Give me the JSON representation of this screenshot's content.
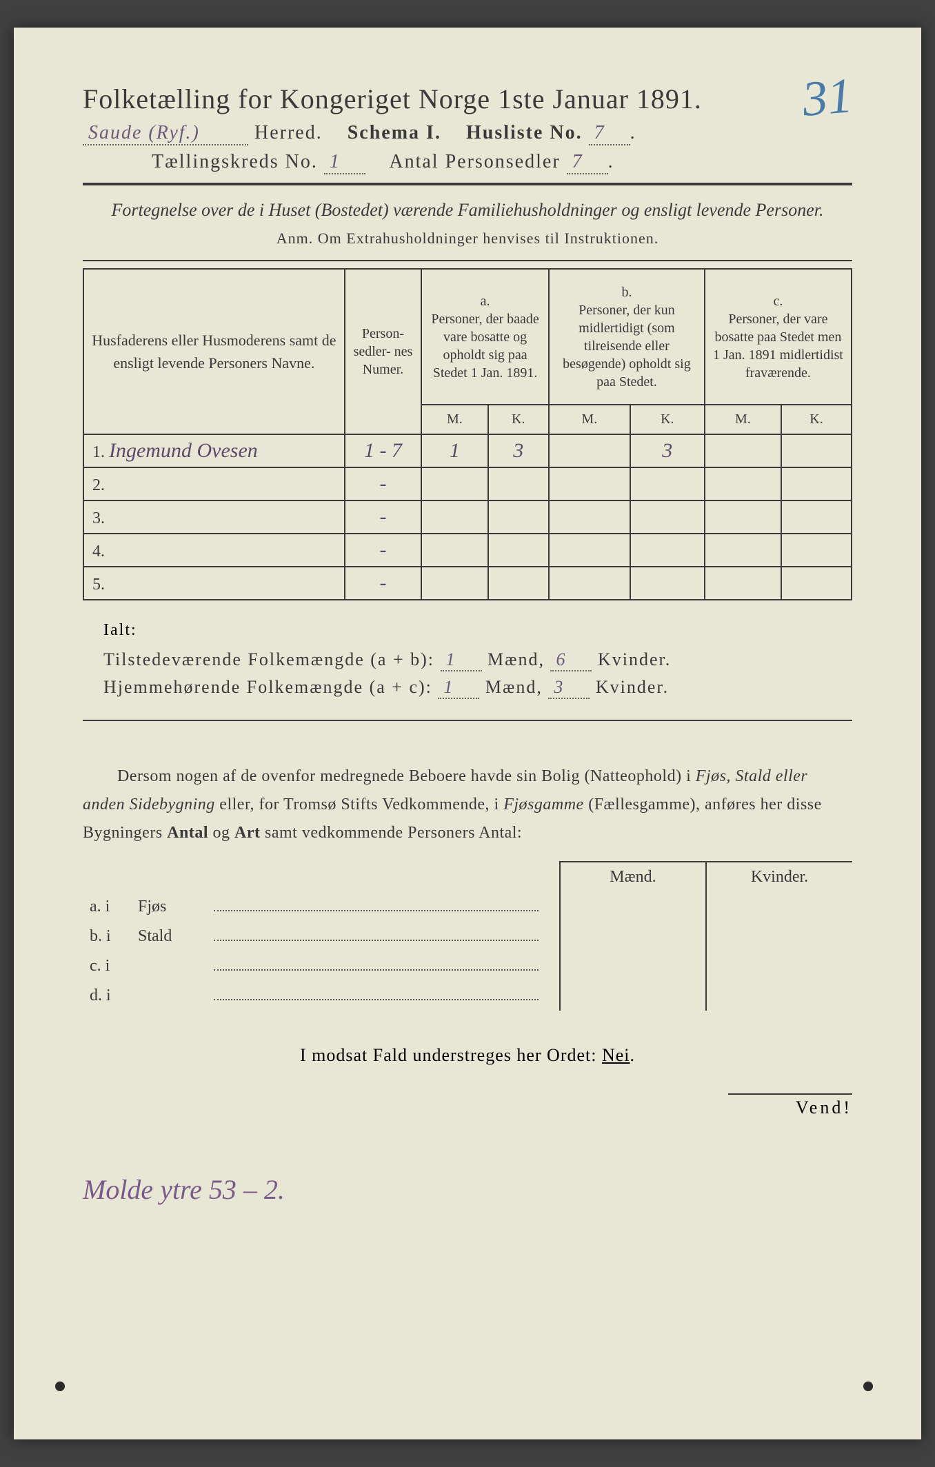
{
  "handwritten_page_number": "31",
  "header": {
    "title": "Folketælling for Kongeriget Norge 1ste Januar 1891.",
    "herred_label_prefix": "Herred.",
    "herred_value": "Saude (Ryf.)",
    "schema_label": "Schema I.",
    "husliste_label": "Husliste No.",
    "husliste_value": "7",
    "tkreds_label": "Tællingskreds No.",
    "tkreds_value": "1",
    "antal_label": "Antal Personsedler",
    "antal_value": "7"
  },
  "description": "Fortegnelse over de i Huset (Bostedet) værende Familiehusholdninger og ensligt levende Personer.",
  "anm_line": "Anm.  Om Extrahusholdninger henvises til Instruktionen.",
  "table": {
    "col_name_header": "Husfaderens eller Husmoderens samt de ensligt levende Personers Navne.",
    "col_personsedler": "Person-\nsedler-\nnes\nNumer.",
    "col_a_label": "a.",
    "col_a_text": "Personer, der baade vare bosatte og opholdt sig paa Stedet 1 Jan. 1891.",
    "col_b_label": "b.",
    "col_b_text": "Personer, der kun midlertidigt (som tilreisende eller besøgende) opholdt sig paa Stedet.",
    "col_c_label": "c.",
    "col_c_text": "Personer, der vare bosatte paa Stedet men 1 Jan. 1891 midlertidist fraværende.",
    "mk_m": "M.",
    "mk_k": "K.",
    "rows": [
      {
        "n": "1.",
        "name": "Ingemund Ovesen",
        "ps": "1 - 7",
        "a_m": "1",
        "a_k": "3",
        "b_m": "",
        "b_k": "3",
        "c_m": "",
        "c_k": ""
      },
      {
        "n": "2.",
        "name": "",
        "ps": "-",
        "a_m": "",
        "a_k": "",
        "b_m": "",
        "b_k": "",
        "c_m": "",
        "c_k": ""
      },
      {
        "n": "3.",
        "name": "",
        "ps": "-",
        "a_m": "",
        "a_k": "",
        "b_m": "",
        "b_k": "",
        "c_m": "",
        "c_k": ""
      },
      {
        "n": "4.",
        "name": "",
        "ps": "-",
        "a_m": "",
        "a_k": "",
        "b_m": "",
        "b_k": "",
        "c_m": "",
        "c_k": ""
      },
      {
        "n": "5.",
        "name": "",
        "ps": "-",
        "a_m": "",
        "a_k": "",
        "b_m": "",
        "b_k": "",
        "c_m": "",
        "c_k": ""
      }
    ]
  },
  "totals": {
    "ialt_label": "Ialt:",
    "line1_prefix": "Tilstedeværende Folkemængde (a + b):",
    "line1_m": "1",
    "line1_k": "6",
    "line2_prefix": "Hjemmehørende Folkemængde (a + c):",
    "line2_m": "1",
    "line2_k": "3",
    "maend_label": "Mænd,",
    "kvinder_label": "Kvinder."
  },
  "note_paragraph": "Dersom nogen af de ovenfor medregnede Beboere havde sin Bolig (Natteophold) i Fjøs, Stald eller anden Sidebygning eller, for Tromsø Stifts Vedkommende, i Fjøsgamme (Fællesgamme), anføres her disse Bygningers Antal og Art samt vedkommende Personers Antal:",
  "sub_table": {
    "head_m": "Mænd.",
    "head_k": "Kvinder.",
    "rows": [
      {
        "l": "a.  i",
        "t": "Fjøs"
      },
      {
        "l": "b.  i",
        "t": "Stald"
      },
      {
        "l": "c.  i",
        "t": ""
      },
      {
        "l": "d.  i",
        "t": ""
      }
    ]
  },
  "footer_line": "I modsat Fald understreges her Ordet: Nei.",
  "vend_label": "Vend!",
  "bottom_handwritten": "Molde ytre 53 – 2."
}
